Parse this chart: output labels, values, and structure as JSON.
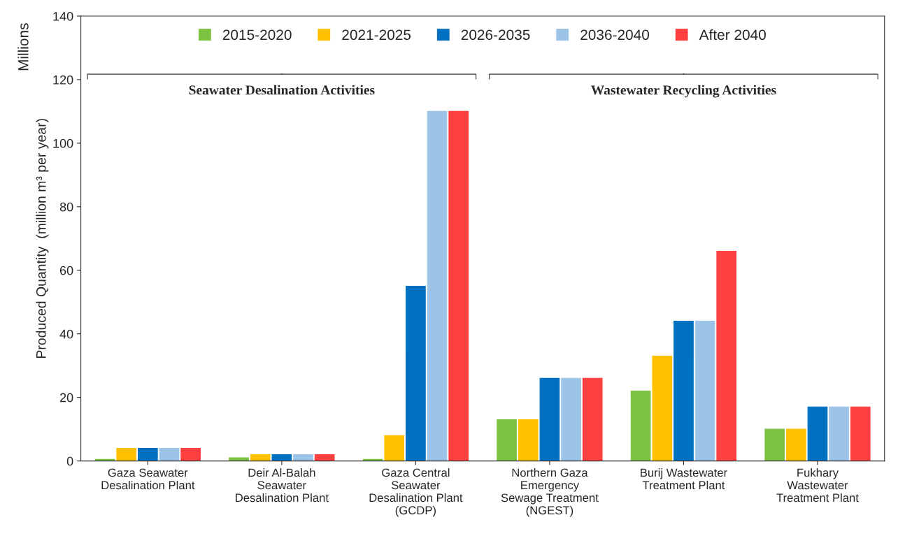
{
  "chart_data": {
    "type": "bar",
    "ylabel": "Produced Quantity  (million m³ per year)",
    "categories": [
      "Gaza Seawater\nDesalination Plant",
      "Deir Al-Balah\nSeawater\nDesalination Plant",
      "Gaza Central\nSeawater\nDesalination Plant\n(GCDP)",
      "Northern Gaza\nEmergency\nSewage Treatment\n(NGEST)",
      "Burij Wastewater\nTreatment Plant",
      "Fukhary\nWastewater\nTreatment Plant"
    ],
    "series": [
      {
        "name": "2015-2020",
        "color": "#7dc142",
        "values": [
          0.5,
          1,
          0.5,
          13,
          22,
          10
        ]
      },
      {
        "name": "2021-2025",
        "color": "#ffc000",
        "values": [
          4,
          2,
          8,
          13,
          33,
          10
        ]
      },
      {
        "name": "2026-2035",
        "color": "#0070c0",
        "values": [
          4,
          2,
          55,
          26,
          44,
          17
        ]
      },
      {
        "name": "2036-2040",
        "color": "#9dc3e6",
        "values": [
          4,
          2,
          110,
          26,
          44,
          17
        ]
      },
      {
        "name": "After 2040",
        "color": "#ff4040",
        "values": [
          4,
          2,
          110,
          26,
          66,
          17
        ]
      }
    ],
    "annotations": [
      "Millions",
      "Seawater Desalination Activities",
      "Wastewater Recycling Activities"
    ],
    "ylim": [
      0,
      140
    ],
    "yticks": [
      0,
      20,
      40,
      60,
      80,
      100,
      120,
      140
    ],
    "grid": false,
    "legend": "top"
  }
}
